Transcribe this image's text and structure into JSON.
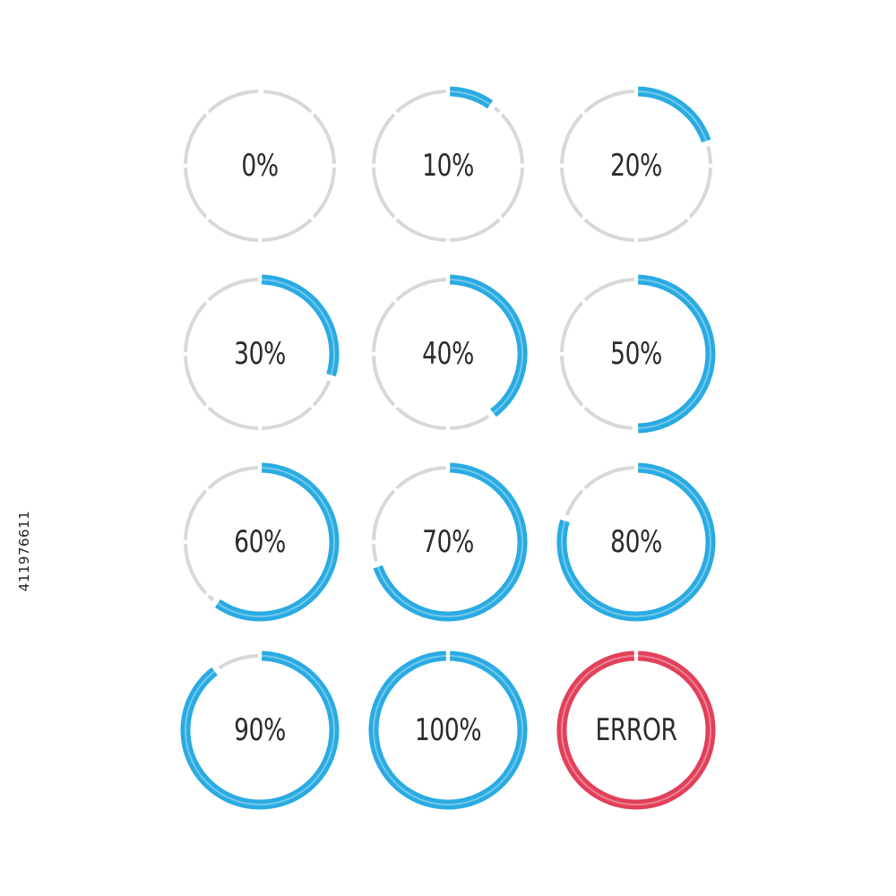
{
  "colors": {
    "track": "#d8d8d8",
    "progress": "#29abe2",
    "error": "#e2405a",
    "text": "#2b2b2b"
  },
  "indicators": [
    {
      "label": "0%",
      "progress": 0,
      "state": "progress"
    },
    {
      "label": "10%",
      "progress": 0.1,
      "state": "progress"
    },
    {
      "label": "20%",
      "progress": 0.2,
      "state": "progress"
    },
    {
      "label": "30%",
      "progress": 0.3,
      "state": "progress"
    },
    {
      "label": "40%",
      "progress": 0.4,
      "state": "progress"
    },
    {
      "label": "50%",
      "progress": 0.5,
      "state": "progress"
    },
    {
      "label": "60%",
      "progress": 0.6,
      "state": "progress"
    },
    {
      "label": "70%",
      "progress": 0.7,
      "state": "progress"
    },
    {
      "label": "80%",
      "progress": 0.8,
      "state": "progress"
    },
    {
      "label": "90%",
      "progress": 0.9,
      "state": "progress"
    },
    {
      "label": "100%",
      "progress": 1.0,
      "state": "progress"
    },
    {
      "label": "ERROR",
      "progress": 1.0,
      "state": "error"
    }
  ],
  "side_id": "411976611"
}
